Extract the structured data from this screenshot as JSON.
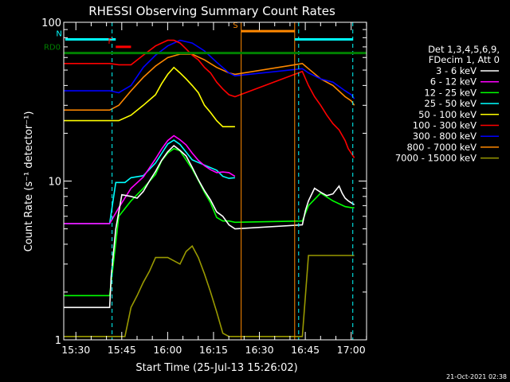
{
  "chart_data": {
    "type": "line",
    "title": "RHESSI Observing Summary Count Rates",
    "xlabel": "Start Time (25-Jul-13 15:26:02)",
    "ylabel": "Count Rate (s⁻¹ detector⁻¹)",
    "yscale": "log",
    "ylim": [
      1,
      100
    ],
    "xlim_minutes_after_1526": [
      0,
      99
    ],
    "x_ticks": [
      "15:30",
      "15:45",
      "16:00",
      "16:15",
      "16:30",
      "16:45",
      "17:00"
    ],
    "y_ticks": [
      "1",
      "10",
      "100"
    ],
    "legend_header": [
      "Det 1,3,4,5,6,9,",
      "FDecim 1, Att 0"
    ],
    "legend_placement": "right",
    "timestamp": "21-Oct-2021 02:38",
    "annotations": [
      "N",
      "F",
      "RD0",
      "RD0",
      "S"
    ],
    "series": [
      {
        "name": "3 - 6 keV",
        "color": "#ffffff",
        "x": [
          0,
          15,
          15.5,
          17,
          19,
          22,
          24,
          26,
          28,
          30,
          32,
          34,
          36,
          38,
          40,
          42,
          44,
          46,
          48,
          50,
          52,
          54,
          56,
          78,
          79,
          80,
          82,
          84,
          86,
          88,
          90,
          91,
          92,
          93,
          94,
          95
        ],
        "y": [
          1.6,
          1.6,
          2.5,
          5.0,
          8.2,
          8.0,
          7.8,
          8.6,
          10.0,
          11.5,
          13.5,
          15.3,
          16.7,
          15.6,
          14.4,
          12.2,
          10.2,
          8.7,
          7.6,
          6.4,
          6.0,
          5.3,
          5.0,
          5.3,
          6.5,
          7.5,
          9.0,
          8.5,
          8.1,
          8.3,
          9.3,
          8.4,
          7.8,
          7.5,
          7.3,
          7.1
        ]
      },
      {
        "name": "6 - 12 keV",
        "color": "#ff00ff",
        "x": [
          0,
          15,
          18,
          22,
          26,
          30,
          32,
          34,
          36,
          38,
          40,
          42,
          44,
          46,
          48,
          50,
          52,
          54,
          56
        ],
        "y": [
          5.4,
          5.4,
          6.8,
          9.0,
          10.6,
          13.8,
          15.9,
          18.0,
          19.3,
          18.2,
          16.9,
          15.0,
          13.5,
          12.5,
          11.8,
          11.3,
          11.4,
          11.3,
          10.7
        ]
      },
      {
        "name": "12 - 25 keV",
        "color": "#00ff00",
        "x": [
          0,
          15,
          18,
          22,
          26,
          30,
          32,
          34,
          36,
          38,
          40,
          42,
          44,
          46,
          48,
          50,
          52,
          54,
          56,
          78,
          80,
          84,
          88,
          92,
          94,
          95
        ],
        "y": [
          1.9,
          1.9,
          6.0,
          7.5,
          9.0,
          11.0,
          13.4,
          15.0,
          16.0,
          15.5,
          13.6,
          11.9,
          10.1,
          8.5,
          7.3,
          5.9,
          5.6,
          5.6,
          5.5,
          5.6,
          7.0,
          8.4,
          7.5,
          6.9,
          6.8,
          6.8
        ]
      },
      {
        "name": "25 - 50 keV",
        "color": "#00ffff",
        "x": [
          0,
          15,
          17,
          20,
          22,
          26,
          30,
          34,
          36,
          38,
          42,
          46,
          50,
          52,
          54,
          56
        ],
        "y": [
          5.4,
          5.4,
          9.8,
          9.8,
          10.5,
          10.8,
          13.0,
          17.1,
          18.1,
          17.0,
          13.6,
          12.6,
          11.7,
          10.7,
          10.4,
          10.5
        ]
      },
      {
        "name": "50 - 100 keV",
        "color": "#ffff00",
        "x": [
          0,
          15,
          18,
          22,
          26,
          30,
          32,
          34,
          36,
          38,
          40,
          42,
          44,
          46,
          48,
          50,
          52,
          54,
          56
        ],
        "y": [
          24,
          24,
          24,
          26,
          30,
          35,
          41,
          47,
          52,
          48,
          44,
          40,
          36,
          30,
          27,
          24,
          22,
          22,
          22
        ]
      },
      {
        "name": "100 - 300 keV",
        "color": "#ff0000",
        "x": [
          0,
          15,
          18,
          22,
          26,
          30,
          32,
          34,
          36,
          38,
          40,
          42,
          44,
          46,
          48,
          50,
          52,
          54,
          56,
          78,
          80,
          82,
          84,
          86,
          88,
          90,
          92,
          93,
          94,
          95
        ],
        "y": [
          55,
          55,
          54,
          54,
          62,
          71,
          74,
          77,
          77,
          74,
          68,
          62,
          58,
          52,
          48,
          42,
          38,
          35,
          34,
          49,
          40,
          34,
          30,
          26,
          23,
          21,
          18,
          16,
          15,
          14
        ]
      },
      {
        "name": "300 - 800 keV",
        "color": "#0000ff",
        "x": [
          0,
          15,
          18,
          22,
          26,
          30,
          34,
          38,
          42,
          46,
          50,
          54,
          56,
          78,
          80,
          84,
          88,
          92,
          94,
          95
        ],
        "y": [
          37,
          37,
          36,
          40,
          52,
          62,
          71,
          77,
          74,
          66,
          56,
          48,
          46,
          51,
          48,
          44,
          42,
          37,
          35,
          33
        ]
      },
      {
        "name": "800 - 7000 keV",
        "color": "#ff8800",
        "x": [
          0,
          15,
          18,
          22,
          26,
          30,
          34,
          38,
          42,
          46,
          50,
          54,
          56,
          78,
          80,
          84,
          88,
          92,
          94,
          95
        ],
        "y": [
          28,
          28,
          30,
          37,
          45,
          53,
          60,
          63,
          63,
          58,
          52,
          48,
          47,
          55,
          51,
          44,
          40,
          34,
          32,
          30
        ]
      },
      {
        "name": "7000 - 15000 keV",
        "color": "#999900",
        "x": [
          0,
          20,
          22,
          24,
          26,
          28,
          30,
          32,
          34,
          38,
          40,
          42,
          44,
          46,
          48,
          50,
          52,
          54,
          56,
          78,
          80,
          84,
          88,
          92,
          95
        ],
        "y": [
          1.05,
          1.05,
          1.6,
          1.9,
          2.3,
          2.7,
          3.3,
          3.3,
          3.3,
          3.0,
          3.6,
          3.9,
          3.3,
          2.6,
          2.0,
          1.5,
          1.1,
          1.05,
          1.05,
          1.05,
          3.4,
          3.4,
          3.4,
          3.4,
          3.4
        ]
      }
    ],
    "flags": [
      {
        "label": "N",
        "color": "#00ffff",
        "segments": [
          [
            0.5,
            17
          ],
          [
            75.5,
            94.5
          ]
        ],
        "y": 78
      },
      {
        "label": "F",
        "color": "#ff0000",
        "segments": [
          [
            17,
            22
          ]
        ],
        "y": 70
      },
      {
        "label": "RD0",
        "color": "#008000",
        "segments": [
          [
            0,
            99
          ]
        ],
        "y": 64
      },
      {
        "label": "S",
        "color": "#ff8800",
        "segments": [
          [
            58,
            75.5
          ]
        ],
        "y": 88
      }
    ],
    "vertical_markers": [
      {
        "x": 15.8,
        "color": "#00ffff",
        "style": "dashed"
      },
      {
        "x": 58.0,
        "color": "#ff8800",
        "style": "solid"
      },
      {
        "x": 75.5,
        "color": "#ff8800",
        "style": "solid"
      },
      {
        "x": 76.8,
        "color": "#00ffff",
        "style": "dashed"
      },
      {
        "x": 94.5,
        "color": "#00ffff",
        "style": "dashed"
      }
    ]
  }
}
